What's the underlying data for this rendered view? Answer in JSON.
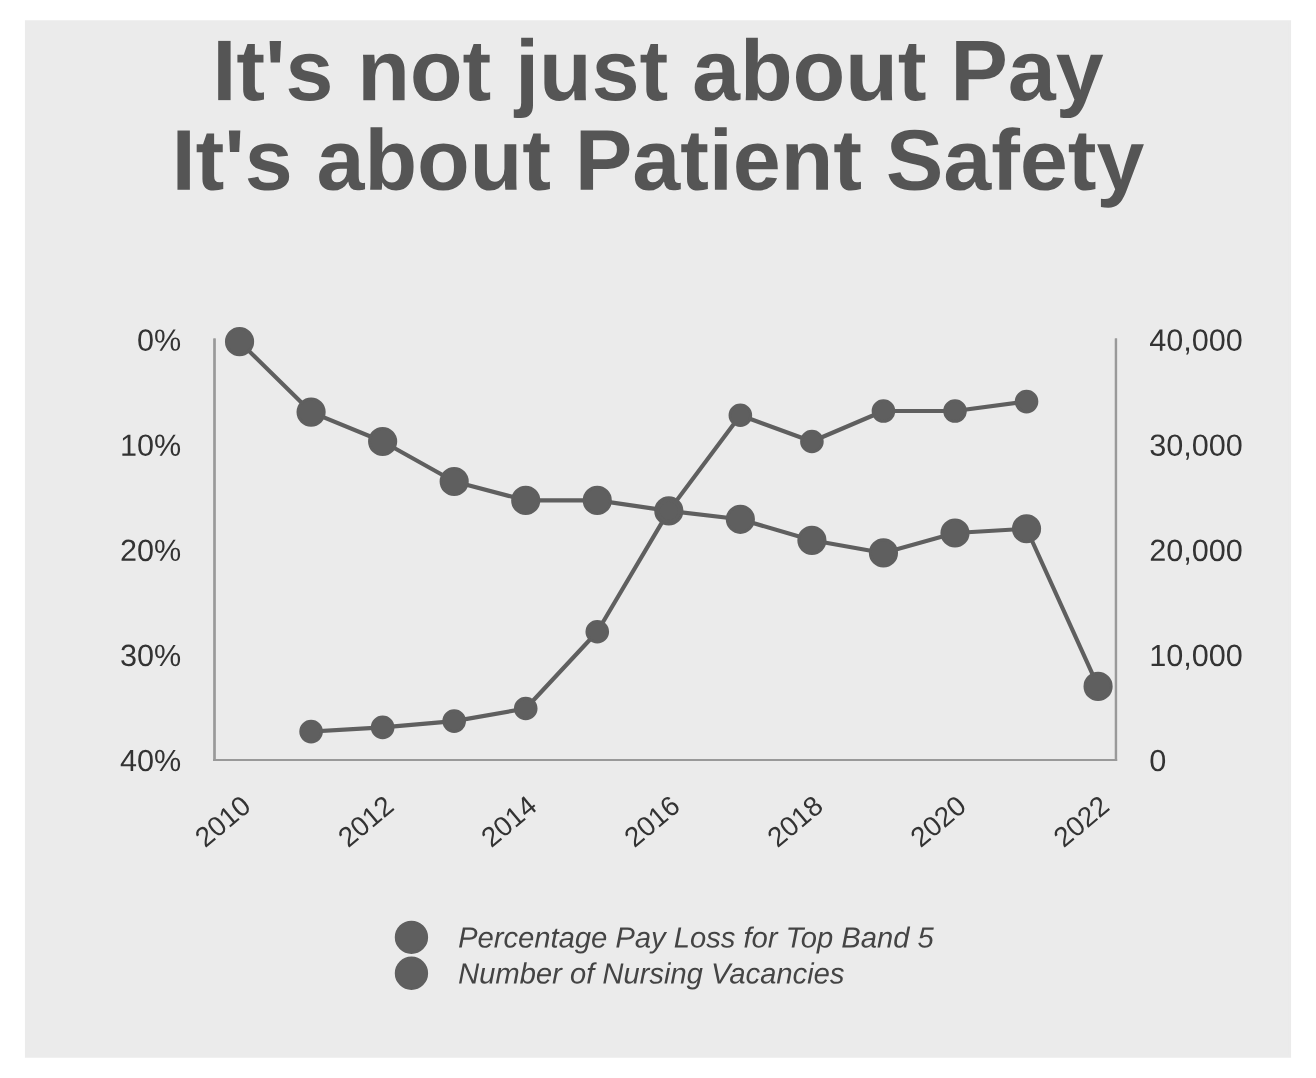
{
  "chart_data": {
    "type": "line",
    "title": "It's not just about Pay\nIt's about Patient Safety",
    "categories": [
      "2010",
      null,
      "2012",
      null,
      "2014",
      null,
      "2016",
      null,
      "2018",
      null,
      "2020",
      null,
      "2022"
    ],
    "series": [
      {
        "name": "Percentage Pay Loss for Top Band 5",
        "color": "#5f5f5f",
        "values": [
          0.2,
          6.9,
          9.7,
          13.5,
          15.3,
          15.3,
          16.3,
          17.1,
          19.1,
          20.3,
          18.4,
          18.0,
          33.0
        ]
      },
      {
        "name": "Number of Nursing Vacancies",
        "color": "#5f5f5f",
        "axis": "y2",
        "values": [
          null,
          2700,
          3100,
          3700,
          4900,
          12200,
          23700,
          32800,
          30300,
          33200,
          33200,
          34100,
          null
        ]
      }
    ],
    "ylim": [
      40,
      0
    ],
    "yticks": [
      {
        "value": 0,
        "label": "0%"
      },
      {
        "value": 10,
        "label": "10%"
      },
      {
        "value": 20,
        "label": "20%"
      },
      {
        "value": 30,
        "label": "30%"
      },
      {
        "value": 40,
        "label": "40%"
      }
    ],
    "y2lim": [
      0,
      40000
    ],
    "y2ticks": [
      {
        "value": 0,
        "label": "0"
      },
      {
        "value": 10000,
        "label": "10,000"
      },
      {
        "value": 20000,
        "label": "20,000"
      },
      {
        "value": 30000,
        "label": "30,000"
      },
      {
        "value": 40000,
        "label": "40,000"
      }
    ],
    "marker": "circle",
    "line_style": "solid",
    "grid": false,
    "legend": "bottom"
  }
}
